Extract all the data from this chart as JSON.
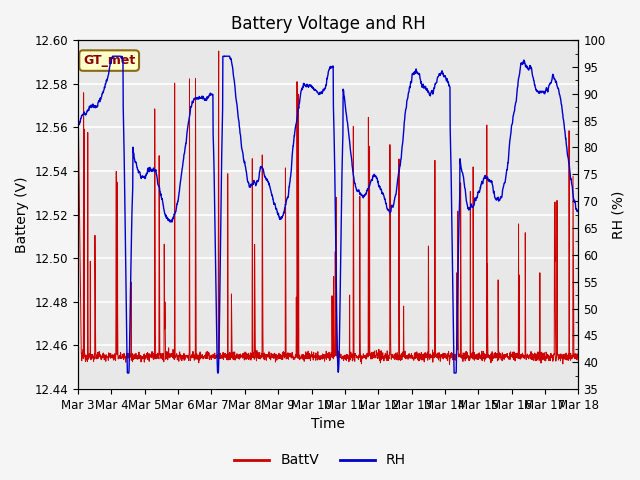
{
  "title": "Battery Voltage and RH",
  "xlabel": "Time",
  "ylabel_left": "Battery (V)",
  "ylabel_right": "RH (%)",
  "left_ylim": [
    12.44,
    12.6
  ],
  "right_ylim": [
    35,
    100
  ],
  "left_yticks": [
    12.44,
    12.46,
    12.48,
    12.5,
    12.52,
    12.54,
    12.56,
    12.58,
    12.6
  ],
  "right_yticks": [
    35,
    40,
    45,
    50,
    55,
    60,
    65,
    70,
    75,
    80,
    85,
    90,
    95,
    100
  ],
  "xtick_labels": [
    "Mar 3",
    "Mar 4",
    "Mar 5",
    "Mar 6",
    "Mar 7",
    "Mar 8",
    "Mar 9",
    "Mar 10",
    "Mar 11",
    "Mar 12",
    "Mar 13",
    "Mar 14",
    "Mar 15",
    "Mar 16",
    "Mar 17",
    "Mar 18"
  ],
  "legend_label_batt": "BattV",
  "legend_label_rh": "RH",
  "batt_color": "#cc0000",
  "rh_color": "#0000cc",
  "annotation_text": "GT_met",
  "annotation_color": "#8B0000",
  "annotation_bg": "#ffffcc",
  "annotation_edge": "#8B6914",
  "bg_color": "#e8e8e8",
  "fig_bg_color": "#f5f5f5",
  "grid_color": "#ffffff",
  "title_fontsize": 12,
  "axis_fontsize": 10,
  "tick_fontsize": 8.5,
  "legend_fontsize": 10,
  "seed": 12345
}
